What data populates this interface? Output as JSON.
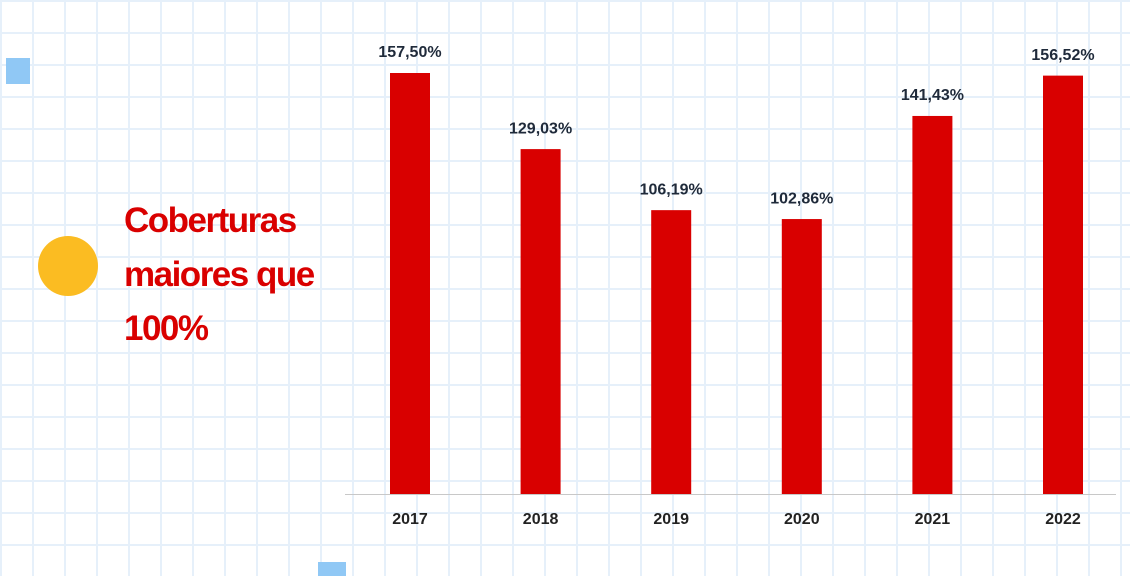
{
  "chart_data": {
    "type": "bar",
    "title": "Coberturas maiores que 100%",
    "categories": [
      "2017",
      "2018",
      "2019",
      "2020",
      "2021",
      "2022"
    ],
    "values": [
      157.5,
      129.03,
      106.19,
      102.86,
      141.43,
      156.52
    ],
    "value_labels": [
      "157,50%",
      "129,03%",
      "106,19%",
      "102,86%",
      "141,43%",
      "156,52%"
    ],
    "color": "#d90000"
  }
}
